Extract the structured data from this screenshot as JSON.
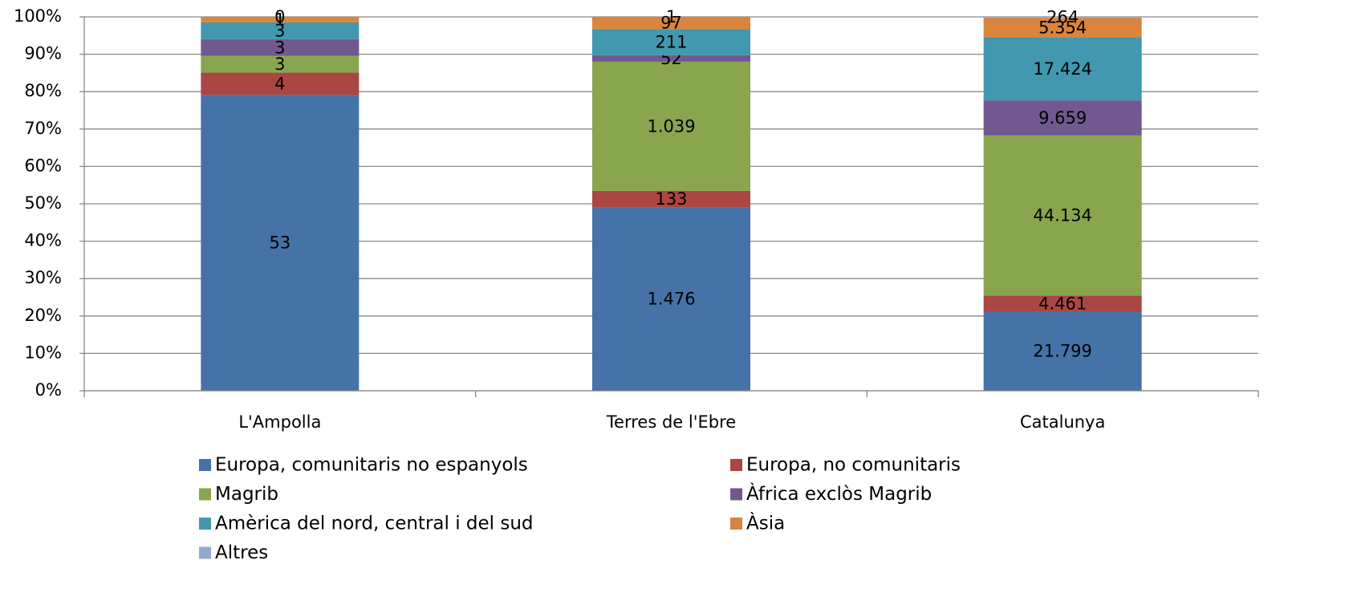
{
  "chart_data": {
    "type": "stacked_percent_bar",
    "categories": [
      "L'Ampolla",
      "Terres de l'Ebre",
      "Catalunya"
    ],
    "series": [
      {
        "name": "Europa, comunitaris no espanyols",
        "color": "#4572a7",
        "values": [
          53,
          1476,
          21799
        ],
        "value_labels": [
          "53",
          "1.476",
          "21.799"
        ]
      },
      {
        "name": "Europa, no comunitaris",
        "color": "#aa4643",
        "values": [
          4,
          133,
          4461
        ],
        "value_labels": [
          "4",
          "133",
          "4.461"
        ]
      },
      {
        "name": "Magrib",
        "color": "#89a54e",
        "values": [
          3,
          1039,
          44134
        ],
        "value_labels": [
          "3",
          "1.039",
          "44.134"
        ]
      },
      {
        "name": "Àfrica exclòs Magrib",
        "color": "#71588f",
        "values": [
          3,
          52,
          9659
        ],
        "value_labels": [
          "3",
          "52",
          "9.659"
        ]
      },
      {
        "name": "Amèrica del nord, central i del sud",
        "color": "#4198af",
        "values": [
          3,
          211,
          17424
        ],
        "value_labels": [
          "3",
          "211",
          "17.424"
        ]
      },
      {
        "name": "Àsia",
        "color": "#db843d",
        "values": [
          1,
          97,
          5354
        ],
        "value_labels": [
          "1",
          "97",
          "5.354"
        ]
      },
      {
        "name": "Altres",
        "color": "#93a9cf",
        "values": [
          0,
          1,
          264
        ],
        "value_labels": [
          "0",
          "1",
          "264"
        ]
      }
    ],
    "ylim": [
      0,
      100
    ],
    "yticks": [
      {
        "value": 0,
        "label": "0%"
      },
      {
        "value": 10,
        "label": "10%"
      },
      {
        "value": 20,
        "label": "20%"
      },
      {
        "value": 30,
        "label": "30%"
      },
      {
        "value": 40,
        "label": "40%"
      },
      {
        "value": 50,
        "label": "50%"
      },
      {
        "value": 60,
        "label": "60%"
      },
      {
        "value": 70,
        "label": "70%"
      },
      {
        "value": 80,
        "label": "80%"
      },
      {
        "value": 90,
        "label": "90%"
      },
      {
        "value": 100,
        "label": "100%"
      }
    ],
    "grid": true
  }
}
